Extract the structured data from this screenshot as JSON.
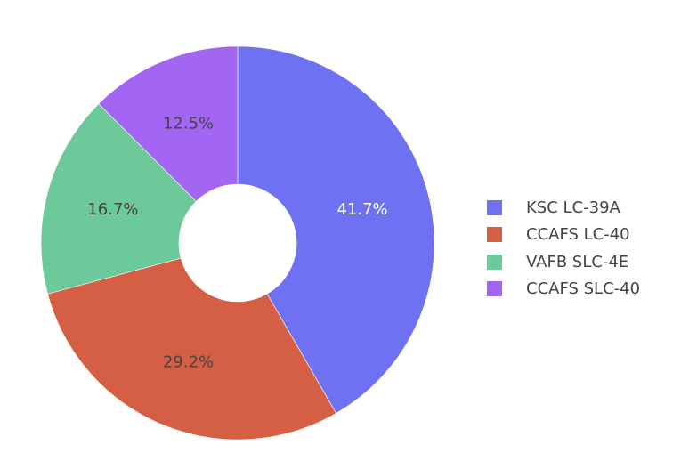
{
  "chart_data": {
    "type": "pie",
    "hole": true,
    "labels": [
      "KSC LC-39A",
      "CCAFS LC-40",
      "VAFB SLC-4E",
      "CCAFS SLC-40"
    ],
    "values": [
      41.7,
      29.2,
      16.7,
      12.5
    ],
    "percent_labels": [
      "41.7%",
      "29.2%",
      "16.7%",
      "12.5%"
    ],
    "colors": [
      "#6e71f2",
      "#d55f45",
      "#6cc99a",
      "#a366f2"
    ],
    "label_colors": [
      "#ffffff",
      "#444444",
      "#444444",
      "#444444"
    ],
    "legend_position": "right"
  }
}
